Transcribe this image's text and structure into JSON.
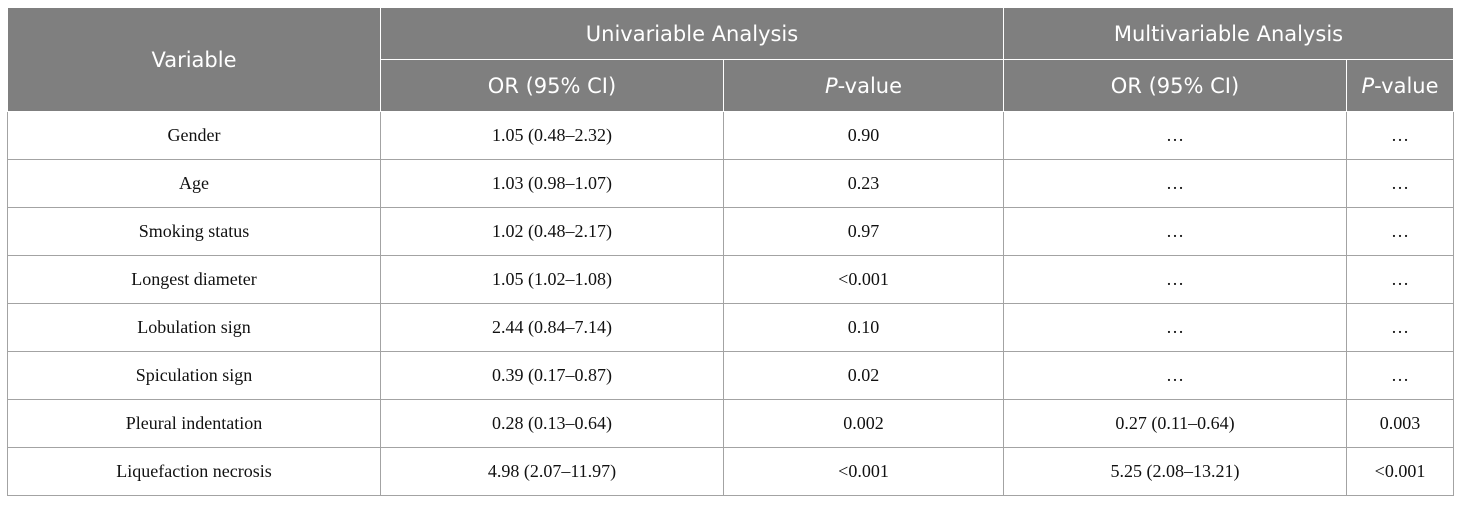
{
  "header": {
    "variable": "Variable",
    "univariable": "Univariable Analysis",
    "multivariable": "Multivariable Analysis",
    "or_ci": "OR (95% CI)",
    "p_prefix": "P",
    "p_suffix": "-value"
  },
  "rows": [
    {
      "variable": "Gender",
      "uni_or": "1.05 (0.48–2.32)",
      "uni_p": "0.90",
      "multi_or": "…",
      "multi_p": "…"
    },
    {
      "variable": "Age",
      "uni_or": "1.03 (0.98–1.07)",
      "uni_p": "0.23",
      "multi_or": "…",
      "multi_p": "…"
    },
    {
      "variable": "Smoking status",
      "uni_or": "1.02 (0.48–2.17)",
      "uni_p": "0.97",
      "multi_or": "…",
      "multi_p": "…"
    },
    {
      "variable": "Longest diameter",
      "uni_or": "1.05 (1.02–1.08)",
      "uni_p": "<0.001",
      "multi_or": "…",
      "multi_p": "…"
    },
    {
      "variable": "Lobulation sign",
      "uni_or": "2.44 (0.84–7.14)",
      "uni_p": "0.10",
      "multi_or": "…",
      "multi_p": "…"
    },
    {
      "variable": "Spiculation sign",
      "uni_or": "0.39 (0.17–0.87)",
      "uni_p": "0.02",
      "multi_or": "…",
      "multi_p": "…"
    },
    {
      "variable": "Pleural indentation",
      "uni_or": "0.28 (0.13–0.64)",
      "uni_p": "0.002",
      "multi_or": "0.27 (0.11–0.64)",
      "multi_p": "0.003"
    },
    {
      "variable": "Liquefaction necrosis",
      "uni_or": "4.98 (2.07–11.97)",
      "uni_p": "<0.001",
      "multi_or": "5.25 (2.08–13.21)",
      "multi_p": "<0.001"
    }
  ]
}
